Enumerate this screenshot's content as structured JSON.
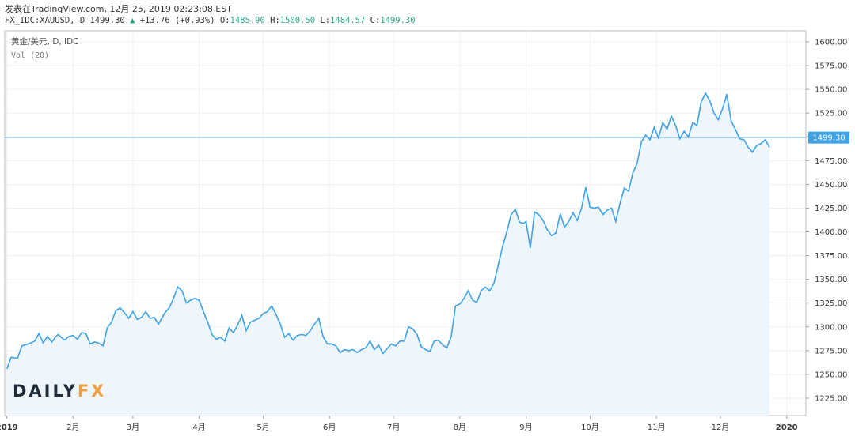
{
  "header": {
    "line1": "发表在TradingView.com, 12月 25, 2019 02:23:08 EST",
    "symbol": "FX_IDC:XAUUSD, D",
    "last": "1499.30",
    "change": "+13.76 (+0.93%)",
    "o_label": "O:",
    "o_value": "1485.90",
    "h_label": "H:",
    "h_value": "1500.50",
    "l_label": "L:",
    "l_value": "1484.57",
    "c_label": "C:",
    "c_value": "1499.30"
  },
  "legend": {
    "title": "黄金/美元, D, IDC",
    "volume": "Vol (20)"
  },
  "watermark": {
    "part1": "DAILY",
    "part2": "FX"
  },
  "colors": {
    "line": "#3da2e6",
    "area": "#eef6fc",
    "price_tag": "#3da2e6",
    "accent_orange": "#f0a040"
  },
  "chart_data": {
    "type": "area",
    "ylim": [
      1210,
      1610
    ],
    "yticks": [
      1225,
      1250,
      1275,
      1300,
      1325,
      1350,
      1375,
      1400,
      1425,
      1450,
      1475,
      1500,
      1525,
      1550,
      1575,
      1600
    ],
    "ytick_labels": [
      "1225.00",
      "1250.00",
      "1275.00",
      "1300.00",
      "1325.00",
      "1350.00",
      "1375.00",
      "1400.00",
      "1425.00",
      "1450.00",
      "1475.00",
      "1500.00",
      "1525.00",
      "1550.00",
      "1575.00",
      "1600.00"
    ],
    "price_line": 1499.3,
    "price_label": "1499.30",
    "xlim": [
      "2018-12-31",
      "2020-01-10"
    ],
    "xticks": [
      "2019-01-01",
      "2019-02-01",
      "2019-03-01",
      "2019-04-01",
      "2019-05-01",
      "2019-06-01",
      "2019-07-01",
      "2019-08-01",
      "2019-09-01",
      "2019-10-01",
      "2019-11-01",
      "2019-12-01",
      "2020-01-01"
    ],
    "xtick_labels": [
      "2019",
      "2月",
      "3月",
      "4月",
      "5月",
      "6月",
      "7月",
      "8月",
      "9月",
      "10月",
      "11月",
      "12月",
      "2020"
    ],
    "series": [
      {
        "points": [
          [
            "2019-01-01",
            1256
          ],
          [
            "2019-01-03",
            1268
          ],
          [
            "2019-01-06",
            1267
          ],
          [
            "2019-01-08",
            1280
          ],
          [
            "2019-01-11",
            1282
          ],
          [
            "2019-01-14",
            1285
          ],
          [
            "2019-01-16",
            1293
          ],
          [
            "2019-01-18",
            1283
          ],
          [
            "2019-01-20",
            1290
          ],
          [
            "2019-01-22",
            1284
          ],
          [
            "2019-01-24",
            1290
          ],
          [
            "2019-01-25",
            1292
          ],
          [
            "2019-01-28",
            1286
          ],
          [
            "2019-01-30",
            1290
          ],
          [
            "2019-02-01",
            1291
          ],
          [
            "2019-02-03",
            1287
          ],
          [
            "2019-02-05",
            1294
          ],
          [
            "2019-02-07",
            1293
          ],
          [
            "2019-02-09",
            1282
          ],
          [
            "2019-02-11",
            1284
          ],
          [
            "2019-02-13",
            1283
          ],
          [
            "2019-02-15",
            1280
          ],
          [
            "2019-02-17",
            1299
          ],
          [
            "2019-02-19",
            1305
          ],
          [
            "2019-02-21",
            1317
          ],
          [
            "2019-02-23",
            1320
          ],
          [
            "2019-02-25",
            1315
          ],
          [
            "2019-02-27",
            1309
          ],
          [
            "2019-03-01",
            1316
          ],
          [
            "2019-03-03",
            1308
          ],
          [
            "2019-03-05",
            1310
          ],
          [
            "2019-03-07",
            1316
          ],
          [
            "2019-03-09",
            1309
          ],
          [
            "2019-03-11",
            1310
          ],
          [
            "2019-03-13",
            1303
          ],
          [
            "2019-03-16",
            1315
          ],
          [
            "2019-03-18",
            1320
          ],
          [
            "2019-03-20",
            1330
          ],
          [
            "2019-03-22",
            1342
          ],
          [
            "2019-03-24",
            1338
          ],
          [
            "2019-03-26",
            1325
          ],
          [
            "2019-03-28",
            1328
          ],
          [
            "2019-03-30",
            1330
          ],
          [
            "2019-04-01",
            1328
          ],
          [
            "2019-04-03",
            1316
          ],
          [
            "2019-04-05",
            1305
          ],
          [
            "2019-04-07",
            1292
          ],
          [
            "2019-04-09",
            1287
          ],
          [
            "2019-04-11",
            1289
          ],
          [
            "2019-04-13",
            1285
          ],
          [
            "2019-04-15",
            1299
          ],
          [
            "2019-04-17",
            1294
          ],
          [
            "2019-04-19",
            1302
          ],
          [
            "2019-04-21",
            1312
          ],
          [
            "2019-04-23",
            1296
          ],
          [
            "2019-04-25",
            1305
          ],
          [
            "2019-04-27",
            1307
          ],
          [
            "2019-04-29",
            1309
          ],
          [
            "2019-05-01",
            1314
          ],
          [
            "2019-05-03",
            1316
          ],
          [
            "2019-05-05",
            1322
          ],
          [
            "2019-05-07",
            1313
          ],
          [
            "2019-05-09",
            1303
          ],
          [
            "2019-05-11",
            1289
          ],
          [
            "2019-05-13",
            1293
          ],
          [
            "2019-05-15",
            1286
          ],
          [
            "2019-05-17",
            1291
          ],
          [
            "2019-05-19",
            1292
          ],
          [
            "2019-05-21",
            1291
          ],
          [
            "2019-05-23",
            1296
          ],
          [
            "2019-05-25",
            1303
          ],
          [
            "2019-05-27",
            1309
          ],
          [
            "2019-05-29",
            1290
          ],
          [
            "2019-05-31",
            1282
          ],
          [
            "2019-06-02",
            1282
          ],
          [
            "2019-06-04",
            1280
          ],
          [
            "2019-06-06",
            1273
          ],
          [
            "2019-06-08",
            1276
          ],
          [
            "2019-06-10",
            1275
          ],
          [
            "2019-06-12",
            1276
          ],
          [
            "2019-06-14",
            1273
          ],
          [
            "2019-06-16",
            1276
          ],
          [
            "2019-06-18",
            1278
          ],
          [
            "2019-06-20",
            1285
          ],
          [
            "2019-06-22",
            1276
          ],
          [
            "2019-06-24",
            1281
          ],
          [
            "2019-06-26",
            1272
          ],
          [
            "2019-06-28",
            1277
          ],
          [
            "2019-06-30",
            1282
          ],
          [
            "2019-07-02",
            1280
          ],
          [
            "2019-07-04",
            1285
          ],
          [
            "2019-07-06",
            1285
          ],
          [
            "2019-07-08",
            1300
          ],
          [
            "2019-07-10",
            1298
          ],
          [
            "2019-07-12",
            1292
          ],
          [
            "2019-07-14",
            1279
          ],
          [
            "2019-07-16",
            1276
          ],
          [
            "2019-07-18",
            1274
          ],
          [
            "2019-07-20",
            1285
          ],
          [
            "2019-07-22",
            1286
          ],
          [
            "2019-07-24",
            1281
          ],
          [
            "2019-07-26",
            1278
          ],
          [
            "2019-07-28",
            1290
          ],
          [
            "2019-07-30",
            1322
          ],
          [
            "2019-08-01",
            1324
          ],
          [
            "2019-08-03",
            1330
          ],
          [
            "2019-08-05",
            1338
          ],
          [
            "2019-08-07",
            1328
          ],
          [
            "2019-08-09",
            1326
          ],
          [
            "2019-08-11",
            1338
          ],
          [
            "2019-08-13",
            1342
          ],
          [
            "2019-08-15",
            1338
          ],
          [
            "2019-08-17",
            1346
          ],
          [
            "2019-08-19",
            1365
          ],
          [
            "2019-08-21",
            1384
          ],
          [
            "2019-08-23",
            1400
          ],
          [
            "2019-08-25",
            1418
          ],
          [
            "2019-08-27",
            1424
          ],
          [
            "2019-08-29",
            1410
          ],
          [
            "2019-08-31",
            1409
          ],
          [
            "2019-09-01",
            1411
          ],
          [
            "2019-09-03",
            1383
          ],
          [
            "2019-09-05",
            1421
          ],
          [
            "2019-09-07",
            1418
          ],
          [
            "2019-09-09",
            1412
          ],
          [
            "2019-09-11",
            1402
          ],
          [
            "2019-09-13",
            1396
          ],
          [
            "2019-09-15",
            1399
          ],
          [
            "2019-09-17",
            1419
          ],
          [
            "2019-09-19",
            1405
          ],
          [
            "2019-09-21",
            1411
          ],
          [
            "2019-09-23",
            1420
          ],
          [
            "2019-09-25",
            1412
          ],
          [
            "2019-09-27",
            1425
          ],
          [
            "2019-09-29",
            1447
          ],
          [
            "2019-10-01",
            1426
          ],
          [
            "2019-10-03",
            1425
          ],
          [
            "2019-10-05",
            1426
          ],
          [
            "2019-10-07",
            1418
          ],
          [
            "2019-10-09",
            1423
          ],
          [
            "2019-10-11",
            1425
          ],
          [
            "2019-10-13",
            1411
          ],
          [
            "2019-10-15",
            1430
          ],
          [
            "2019-10-17",
            1446
          ],
          [
            "2019-10-19",
            1443
          ],
          [
            "2019-10-21",
            1462
          ],
          [
            "2019-10-23",
            1472
          ],
          [
            "2019-10-25",
            1495
          ],
          [
            "2019-10-27",
            1502
          ],
          [
            "2019-10-29",
            1497
          ],
          [
            "2019-10-31",
            1510
          ],
          [
            "2019-11-02",
            1499
          ],
          [
            "2019-11-04",
            1515
          ],
          [
            "2019-11-06",
            1508
          ],
          [
            "2019-11-08",
            1522
          ],
          [
            "2019-11-10",
            1512
          ],
          [
            "2019-11-12",
            1498
          ],
          [
            "2019-11-14",
            1506
          ],
          [
            "2019-11-16",
            1500
          ],
          [
            "2019-11-18",
            1515
          ],
          [
            "2019-11-20",
            1512
          ],
          [
            "2019-11-22",
            1537
          ],
          [
            "2019-11-24",
            1546
          ],
          [
            "2019-11-26",
            1538
          ],
          [
            "2019-11-28",
            1525
          ],
          [
            "2019-11-30",
            1518
          ],
          [
            "2019-12-02",
            1530
          ],
          [
            "2019-12-04",
            1545
          ],
          [
            "2019-12-06",
            1517
          ],
          [
            "2019-12-08",
            1508
          ],
          [
            "2019-12-10",
            1498
          ],
          [
            "2019-12-12",
            1497
          ],
          [
            "2019-12-14",
            1489
          ],
          [
            "2019-12-16",
            1484
          ],
          [
            "2019-12-18",
            1491
          ],
          [
            "2019-12-20",
            1493
          ],
          [
            "2019-12-22",
            1497
          ],
          [
            "2019-12-24",
            1489
          ]
        ]
      }
    ]
  }
}
